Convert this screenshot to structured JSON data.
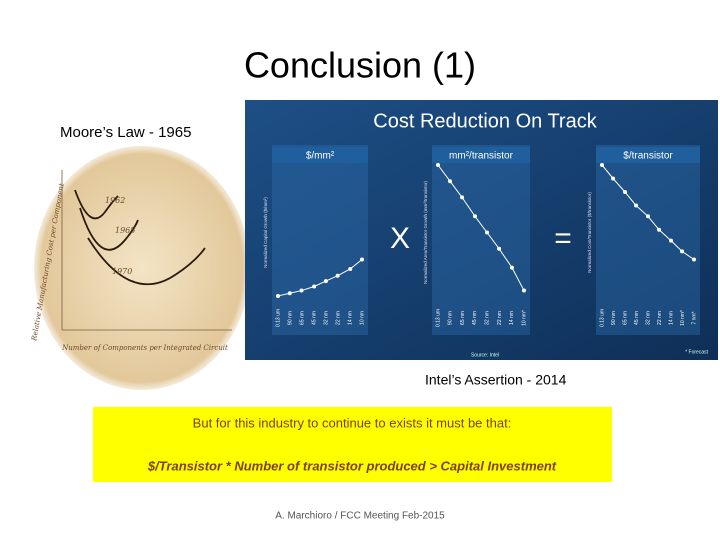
{
  "slide": {
    "title": "Conclusion (1)",
    "moore": {
      "caption": "Moore’s Law - 1965",
      "curve_labels": [
        "1962",
        "1965",
        "1970"
      ],
      "y_axis_label": "Relative Manufacturing Cost per Component",
      "x_axis_label": "Number of Components per Integrated Circuit"
    },
    "intel": {
      "title": "Cost Reduction On Track",
      "operators": [
        "X",
        "="
      ],
      "footnote": "* Forecast",
      "source": "Source: Intel",
      "panels": [
        {
          "title": "$/mm²",
          "y_axis_label": "Normalized Capital Growth ($/mm²)",
          "categories": [
            "0.13 um",
            "90 nm",
            "65 nm",
            "45 nm",
            "32 nm",
            "22 nm",
            "14 nm",
            "10 nm"
          ]
        },
        {
          "title": "mm²/transistor",
          "y_axis_label": "Normalized Area/Transistor Growth (mm²/transistor)",
          "categories": [
            "0.13 um",
            "90 nm",
            "65 nm",
            "45 nm",
            "32 nm",
            "22 nm",
            "14 nm",
            "10 nm*"
          ]
        },
        {
          "title": "$/transistor",
          "y_axis_label": "Normalized Cost/Transistor ($/transistor)",
          "categories": [
            "0.13 um",
            "90 nm",
            "65 nm",
            "45 nm",
            "32 nm",
            "22 nm",
            "14 nm",
            "10 nm*",
            "7 nm*"
          ]
        }
      ]
    },
    "intel_caption": "Intel’s Assertion - 2014",
    "box": {
      "line1": "But for this industry to continue to exists it must be that:",
      "line2": "$/Transistor * Number of transistor produced > Capital Investment"
    },
    "footer": "A. Marchioro / FCC Meeting Feb-2015"
  }
}
